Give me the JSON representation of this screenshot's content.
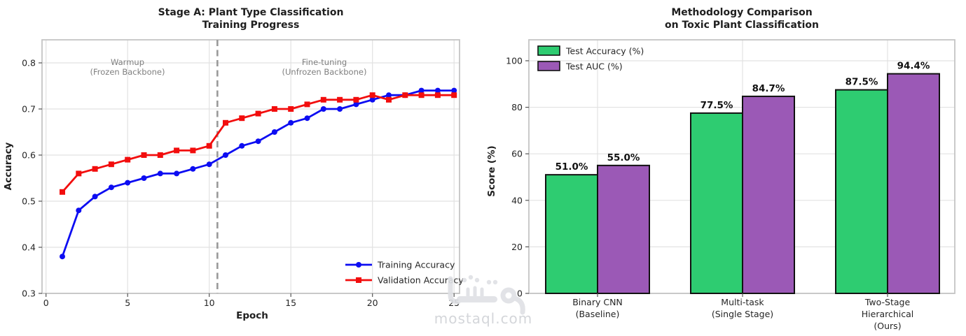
{
  "page": {
    "background": "#ffffff",
    "watermark": {
      "logo_text": "مستقل",
      "domain_text": "mostaql.com",
      "logo_color": "#dfe1e5",
      "text_color": "#d4d6da"
    }
  },
  "chart_data": [
    {
      "id": "training-progress",
      "type": "line",
      "title_lines": [
        "Stage A: Plant Type Classification",
        "Training Progress"
      ],
      "xlabel": "Epoch",
      "ylabel": "Accuracy",
      "xlim": [
        -0.3,
        25.4
      ],
      "ylim": [
        0.3,
        0.85
      ],
      "xticks": [
        0,
        5,
        10,
        15,
        20,
        25
      ],
      "yticks": [
        0.3,
        0.4,
        0.5,
        0.6,
        0.7,
        0.8
      ],
      "grid": true,
      "legend_position": "lower right",
      "x": [
        1,
        2,
        3,
        4,
        5,
        6,
        7,
        8,
        9,
        10,
        11,
        12,
        13,
        14,
        15,
        16,
        17,
        18,
        19,
        20,
        21,
        22,
        23,
        24,
        25
      ],
      "series": [
        {
          "name": "Training Accuracy",
          "color": "#0d0df2",
          "marker": "circle",
          "values": [
            0.38,
            0.48,
            0.51,
            0.53,
            0.54,
            0.55,
            0.56,
            0.56,
            0.57,
            0.58,
            0.6,
            0.62,
            0.63,
            0.65,
            0.67,
            0.68,
            0.7,
            0.7,
            0.71,
            0.72,
            0.73,
            0.73,
            0.74,
            0.74,
            0.74
          ]
        },
        {
          "name": "Validation Accuracy",
          "color": "#f20d0d",
          "marker": "square",
          "values": [
            0.52,
            0.56,
            0.57,
            0.58,
            0.59,
            0.6,
            0.6,
            0.61,
            0.61,
            0.62,
            0.67,
            0.68,
            0.69,
            0.7,
            0.7,
            0.71,
            0.72,
            0.72,
            0.72,
            0.73,
            0.72,
            0.73,
            0.73,
            0.73,
            0.73
          ]
        }
      ],
      "phase_divider": {
        "x": 10.5,
        "color": "#999999",
        "style": "dashed"
      },
      "annotations": [
        {
          "lines": [
            "Warmup",
            "(Frozen Backbone)"
          ],
          "x": 5.0,
          "y": 0.8
        },
        {
          "lines": [
            "Fine-tuning",
            "(Unfrozen Backbone)"
          ],
          "x": 17.0,
          "y": 0.8
        }
      ]
    },
    {
      "id": "methodology-comparison",
      "type": "bar",
      "title_lines": [
        "Methodology Comparison",
        "on Toxic Plant Classification"
      ],
      "ylabel": "Score (%)",
      "ylim": [
        0,
        109
      ],
      "yticks": [
        0,
        20,
        40,
        60,
        80,
        100
      ],
      "grid": true,
      "legend_position": "upper left",
      "bar_edge_color": "#111111",
      "categories": [
        [
          "Binary CNN",
          "(Baseline)"
        ],
        [
          "Multi-task",
          "(Single Stage)"
        ],
        [
          "Two-Stage",
          "Hierarchical",
          "(Ours)"
        ]
      ],
      "series": [
        {
          "name": "Test Accuracy (%)",
          "color": "#2ecc71",
          "values": [
            51.0,
            77.5,
            87.5
          ],
          "labels": [
            "51.0%",
            "77.5%",
            "87.5%"
          ]
        },
        {
          "name": "Test AUC (%)",
          "color": "#9b59b6",
          "values": [
            55.0,
            84.7,
            94.4
          ],
          "labels": [
            "55.0%",
            "84.7%",
            "94.4%"
          ]
        }
      ]
    }
  ]
}
